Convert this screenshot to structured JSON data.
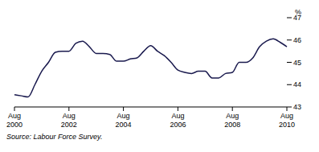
{
  "chart_data": {
    "type": "line",
    "ylabel": "%",
    "source": "Source: Labour Force Survey.",
    "categories": [
      "Aug 2000",
      null,
      null,
      null,
      null,
      null,
      null,
      null,
      "Aug 2002",
      null,
      null,
      null,
      null,
      null,
      null,
      null,
      "Aug 2004",
      null,
      null,
      null,
      null,
      null,
      null,
      null,
      "Aug 2006",
      null,
      null,
      null,
      null,
      null,
      null,
      null,
      "Aug 2008",
      null,
      null,
      null,
      null,
      null,
      null,
      null,
      "Aug 2010"
    ],
    "values": [
      43.55,
      43.5,
      43.45,
      44.0,
      44.6,
      45.0,
      45.45,
      45.5,
      45.5,
      45.85,
      45.95,
      45.7,
      45.4,
      45.4,
      45.35,
      45.05,
      45.05,
      45.15,
      45.2,
      45.5,
      45.75,
      45.5,
      45.3,
      45.0,
      44.65,
      44.55,
      44.5,
      44.6,
      44.6,
      44.3,
      44.3,
      44.5,
      44.55,
      45.0,
      45.0,
      45.2,
      45.7,
      45.95,
      46.05,
      45.9,
      45.7
    ],
    "color": "#1a1a4e",
    "ylim": [
      43,
      47
    ],
    "yticks": [
      43,
      44,
      45,
      46,
      47
    ],
    "grid": false
  }
}
